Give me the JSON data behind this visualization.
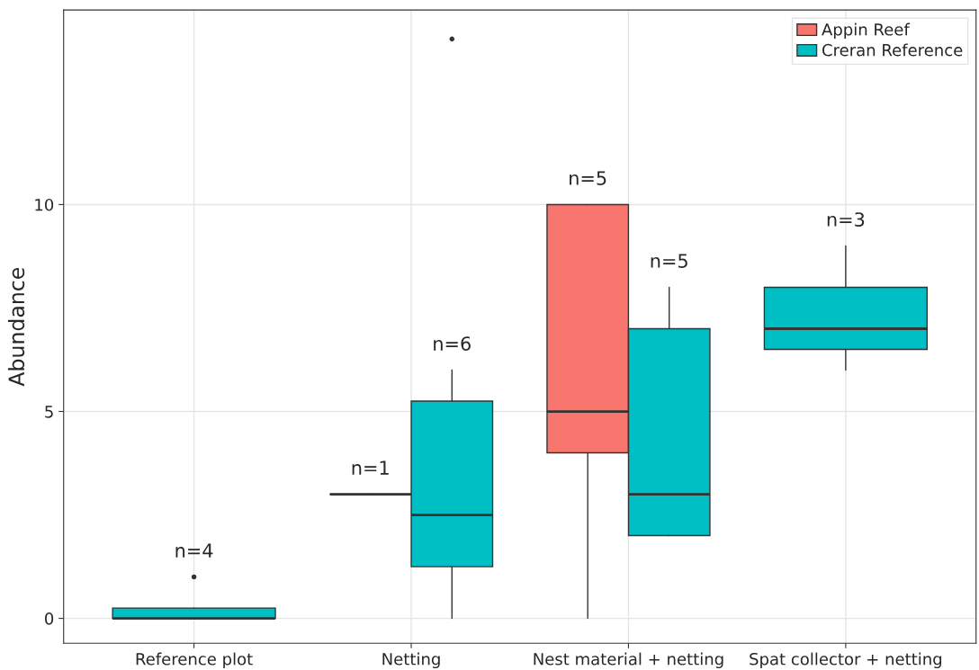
{
  "chart_data": {
    "type": "box",
    "ylabel": "Abundance",
    "categories": [
      "Reference plot",
      "Netting",
      "Nest material + netting",
      "Spat collector + netting"
    ],
    "series": [
      {
        "name": "Appin Reef",
        "color": "#f8766d",
        "value_labels": [
          null,
          "n=1",
          "n=5",
          null
        ],
        "boxes": [
          null,
          {
            "low": 3,
            "q1": 3,
            "median": 3,
            "q3": 3,
            "high": 3
          },
          {
            "low": 0,
            "q1": 4,
            "median": 5,
            "q3": 10,
            "high": 10
          },
          null
        ]
      },
      {
        "name": "Creran Reference",
        "color": "#00bfc4",
        "value_labels": [
          "n=4",
          "n=6",
          "n=5",
          "n=3"
        ],
        "boxes": [
          {
            "low": 0,
            "q1": 0,
            "median": 0,
            "q3": 0.25,
            "high": 0.25,
            "outliers": [
              1
            ]
          },
          {
            "low": 0,
            "q1": 1.25,
            "median": 2.5,
            "q3": 5.25,
            "high": 6,
            "outliers": [
              14
            ]
          },
          {
            "low": 2,
            "q1": 2,
            "median": 3,
            "q3": 7,
            "high": 8
          },
          {
            "low": 6,
            "q1": 6.5,
            "median": 7,
            "q3": 8,
            "high": 9
          }
        ]
      }
    ],
    "ylim": [
      -0.6,
      14.7
    ],
    "yticks": [
      0,
      5,
      10
    ],
    "grid": true,
    "legend": "top right"
  }
}
